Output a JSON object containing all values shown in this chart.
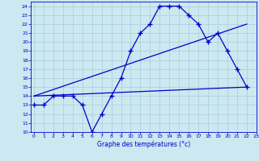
{
  "bg_color": "#cce8f0",
  "line_color": "#0000cc",
  "grid_color": "#aaccdd",
  "temp_data": [
    13,
    13,
    14,
    14,
    14,
    13,
    10,
    12,
    14,
    16,
    19,
    21,
    22,
    24,
    24,
    24,
    23,
    22,
    20,
    21,
    19,
    17,
    15
  ],
  "flat_line_x": [
    0,
    22
  ],
  "flat_line_y": [
    14,
    15
  ],
  "trend_line_x": [
    0,
    22
  ],
  "trend_line_y": [
    14,
    22
  ],
  "ylim": [
    10,
    24.5
  ],
  "xlim": [
    -0.3,
    23.0
  ],
  "yticks": [
    10,
    11,
    12,
    13,
    14,
    15,
    16,
    17,
    18,
    19,
    20,
    21,
    22,
    23,
    24
  ],
  "xticks": [
    0,
    1,
    2,
    3,
    4,
    5,
    6,
    7,
    8,
    9,
    10,
    11,
    12,
    13,
    14,
    15,
    16,
    17,
    18,
    19,
    20,
    21,
    22,
    23
  ],
  "xlabel": "Graphe des températures (°c)"
}
